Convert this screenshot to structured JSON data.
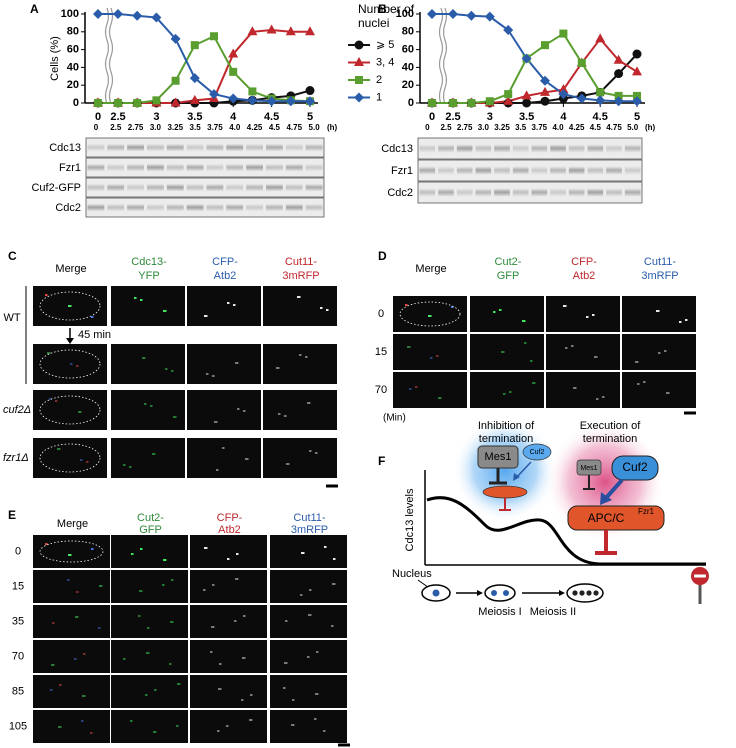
{
  "chart_data": [
    {
      "type": "line",
      "label": "A",
      "y_label": "Cells (%)",
      "legend_title": "Number of nuclei",
      "x": [
        0,
        2.5,
        2.75,
        3,
        3.25,
        3.5,
        3.75,
        4,
        4.25,
        4.5,
        4.75,
        5
      ],
      "xlim": [
        0,
        5
      ],
      "xticks": [
        0,
        2.5,
        3,
        3.5,
        4,
        4.5,
        5
      ],
      "ylim": [
        0,
        100
      ],
      "yticks": [
        0,
        20,
        40,
        60,
        80,
        100
      ],
      "series": [
        {
          "name": "⩾ 5",
          "color": "#111111",
          "marker": "circle",
          "values": [
            0,
            0,
            0,
            0,
            0,
            0,
            0,
            2,
            3,
            6,
            8,
            14
          ]
        },
        {
          "name": "3, 4",
          "color": "#c0282d",
          "marker": "triangle",
          "values": [
            0,
            0,
            0,
            0,
            0,
            3,
            5,
            55,
            80,
            82,
            80,
            80
          ]
        },
        {
          "name": "2",
          "color": "#5a9e2f",
          "marker": "square",
          "values": [
            0,
            0,
            0,
            3,
            25,
            65,
            75,
            35,
            13,
            5,
            3,
            2
          ]
        },
        {
          "name": "1",
          "color": "#2a5caa",
          "marker": "diamond",
          "values": [
            100,
            100,
            98,
            96,
            72,
            28,
            10,
            5,
            3,
            2,
            2,
            2
          ]
        }
      ],
      "lane_labels": [
        "0",
        "2.5",
        "2.75",
        "3.0",
        "3.25",
        "3.5",
        "3.75",
        "4.0",
        "4.25",
        "4.5",
        "4.75",
        "5.0"
      ],
      "lane_unit": "(h)",
      "blots": [
        "Cdc13",
        "Fzr1",
        "Cuf2-GFP",
        "Cdc2"
      ]
    },
    {
      "type": "line",
      "label": "B",
      "x": [
        0,
        2.5,
        2.75,
        3,
        3.25,
        3.5,
        3.75,
        4,
        4.25,
        4.5,
        4.75,
        5
      ],
      "xlim": [
        0,
        5
      ],
      "xticks": [
        0,
        2.5,
        3,
        3.5,
        4,
        4.5,
        5
      ],
      "ylim": [
        0,
        100
      ],
      "yticks": [
        0,
        20,
        40,
        60,
        80,
        100
      ],
      "series": [
        {
          "color": "#111111",
          "marker": "circle",
          "values": [
            0,
            0,
            0,
            0,
            0,
            0,
            2,
            5,
            8,
            12,
            33,
            55
          ]
        },
        {
          "color": "#c0282d",
          "marker": "triangle",
          "values": [
            0,
            0,
            0,
            0,
            2,
            8,
            12,
            15,
            45,
            72,
            48,
            35
          ]
        },
        {
          "color": "#5a9e2f",
          "marker": "square",
          "values": [
            0,
            0,
            0,
            2,
            10,
            50,
            65,
            78,
            45,
            12,
            8,
            8
          ]
        },
        {
          "color": "#2a5caa",
          "marker": "diamond",
          "values": [
            100,
            100,
            98,
            97,
            82,
            50,
            25,
            10,
            5,
            3,
            2,
            2
          ]
        }
      ],
      "lane_labels": [
        "0",
        "2.5",
        "2.75",
        "3.0",
        "3.25",
        "3.5",
        "3.75",
        "4.0",
        "4.25",
        "4.5",
        "4.75",
        "5.0"
      ],
      "lane_unit": "(h)",
      "blots": [
        "Cdc13",
        "Fzr1",
        "Cdc2"
      ]
    }
  ],
  "panel_c": {
    "label": "C",
    "columns": [
      {
        "lines": [
          "Merge"
        ],
        "color": "#000000"
      },
      {
        "lines": [
          "Cdc13-",
          "YFP"
        ],
        "color": "#2e8b3a"
      },
      {
        "lines": [
          "CFP-",
          "Atb2"
        ],
        "color": "#2a5caa"
      },
      {
        "lines": [
          "Cut11-",
          "3mRFP"
        ],
        "color": "#c0282d"
      }
    ],
    "wt_label": "WT",
    "time_label": "45 min",
    "mutant_rows": [
      "cuf2Δ",
      "fzr1Δ"
    ]
  },
  "panel_d": {
    "label": "D",
    "columns": [
      {
        "lines": [
          "Merge"
        ],
        "color": "#000000"
      },
      {
        "lines": [
          "Cut2-",
          "GFP"
        ],
        "color": "#2e8b3a"
      },
      {
        "lines": [
          "CFP-",
          "Atb2"
        ],
        "color": "#c0282d"
      },
      {
        "lines": [
          "Cut11-",
          "3mRFP"
        ],
        "color": "#2a5caa"
      }
    ],
    "rows": [
      "0",
      "15",
      "70"
    ],
    "unit": "(Min)"
  },
  "panel_e": {
    "label": "E",
    "columns": [
      {
        "lines": [
          "Merge"
        ],
        "color": "#000000"
      },
      {
        "lines": [
          "Cut2-",
          "GFP"
        ],
        "color": "#2e8b3a"
      },
      {
        "lines": [
          "CFP-",
          "Atb2"
        ],
        "color": "#c0282d"
      },
      {
        "lines": [
          "Cut11-",
          "3mRFP"
        ],
        "color": "#2a5caa"
      }
    ],
    "rows": [
      "0",
      "15",
      "35",
      "70",
      "85",
      "105"
    ]
  },
  "panel_f": {
    "label": "F",
    "inhibition": "Inhibition of termination",
    "execution": "Execution of termination",
    "mes1": "Mes1",
    "cuf2_small": "Cuf2",
    "mes1_small": "Mes1",
    "cuf2": "Cuf2",
    "apc": "APC/C",
    "fzr1": "Fzr1",
    "y_label": "Cdc13 levels",
    "nucleus": "Nucleus",
    "meiosis1": "Meiosis I",
    "meiosis2": "Meiosis II"
  }
}
